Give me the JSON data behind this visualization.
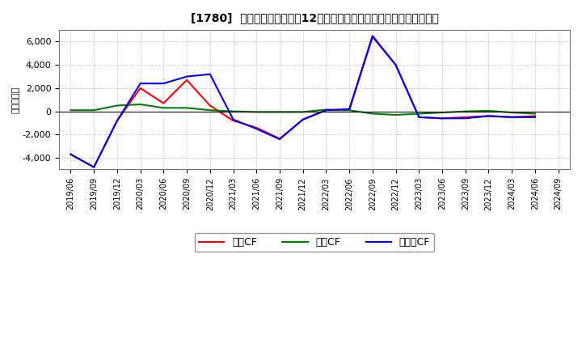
{
  "title": "[1780]  キャッシュフローの12か月移動合計の対前年同期増減額の推移",
  "ylabel": "（百万円）",
  "background_color": "#ffffff",
  "grid_color": "#aaaaaa",
  "x_labels": [
    "2019/06",
    "2019/09",
    "2019/12",
    "2020/03",
    "2020/06",
    "2020/09",
    "2020/12",
    "2021/03",
    "2021/06",
    "2021/09",
    "2021/12",
    "2022/03",
    "2022/06",
    "2022/09",
    "2022/12",
    "2023/03",
    "2023/06",
    "2023/09",
    "2023/12",
    "2024/03",
    "2024/06",
    "2024/09"
  ],
  "operating_cf": [
    -3700,
    -4800,
    -800,
    2000,
    700,
    2700,
    500,
    -800,
    -1400,
    -2350,
    -700,
    100,
    100,
    6400,
    4000,
    -500,
    -600,
    -500,
    -400,
    -500,
    -400,
    null
  ],
  "investing_cf": [
    100,
    100,
    500,
    600,
    300,
    300,
    100,
    0,
    -50,
    -50,
    -50,
    150,
    100,
    -200,
    -300,
    -200,
    -100,
    0,
    50,
    -100,
    -200,
    null
  ],
  "free_cf": [
    -3700,
    -4800,
    -800,
    2400,
    2400,
    3000,
    3200,
    -700,
    -1500,
    -2400,
    -700,
    100,
    200,
    6500,
    4000,
    -500,
    -600,
    -600,
    -400,
    -500,
    -500,
    null
  ],
  "operating_color": "#ff0000",
  "investing_color": "#008000",
  "free_color": "#0000ff",
  "ylim": [
    -5000,
    7000
  ],
  "yticks": [
    -4000,
    -2000,
    0,
    2000,
    4000,
    6000
  ],
  "legend_labels": [
    "営業CF",
    "投資CF",
    "フリーCF"
  ]
}
